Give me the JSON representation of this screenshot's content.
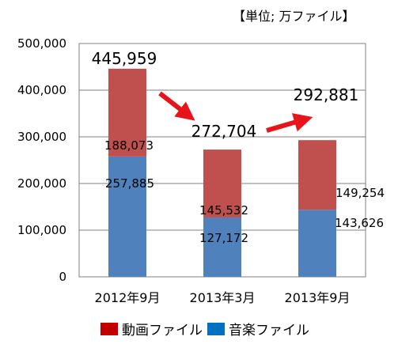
{
  "chart_data": {
    "type": "bar",
    "stacked": true,
    "unit_note": "【単位; 万ファイル】",
    "categories": [
      "2012年9月",
      "2013年3月",
      "2013年9月"
    ],
    "series": [
      {
        "name": "音楽ファイル",
        "color": "#4F81BD",
        "values": [
          257885,
          127172,
          143626
        ],
        "labels": [
          "257,885",
          "127,172",
          "143,626"
        ]
      },
      {
        "name": "動画ファイル",
        "color": "#C0504D",
        "values": [
          188073,
          145532,
          149254
        ],
        "labels": [
          "188,073",
          "145,532",
          "149,254"
        ]
      }
    ],
    "totals": [
      445959,
      272704,
      292881
    ],
    "total_labels": [
      "445,959",
      "272,704",
      "292,881"
    ],
    "ylim": [
      0,
      500000
    ],
    "yticks": [
      0,
      100000,
      200000,
      300000,
      400000,
      500000
    ],
    "ytick_labels": [
      "0",
      "100,000",
      "200,000",
      "300,000",
      "400,000",
      "500,000"
    ],
    "grid": true,
    "trend_arrow_color": "#E8141B",
    "legend": {
      "position": "bottom",
      "items": [
        {
          "label": "動画ファイル",
          "color": "#C00000"
        },
        {
          "label": "音楽ファイル",
          "color": "#0070C0"
        }
      ]
    }
  }
}
